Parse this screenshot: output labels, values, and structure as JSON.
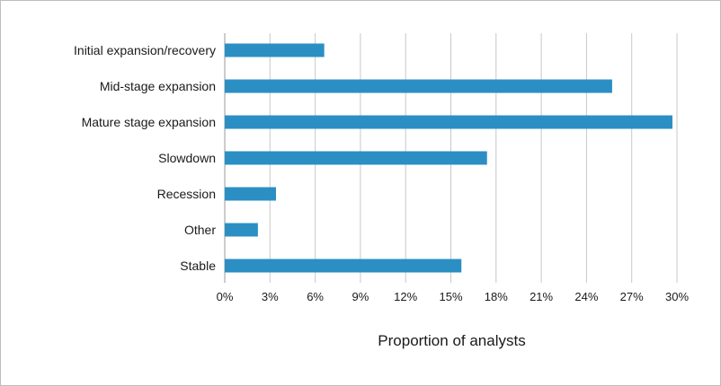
{
  "chart_data": {
    "type": "bar",
    "orientation": "horizontal",
    "categories": [
      "Initial expansion/recovery",
      "Mid-stage expansion",
      "Mature stage expansion",
      "Slowdown",
      "Recession",
      "Other",
      "Stable"
    ],
    "values": [
      6.6,
      25.7,
      29.7,
      17.4,
      3.4,
      2.2,
      15.7
    ],
    "xlabel": "Proportion of analysts",
    "ylabel": "",
    "title": "",
    "xlim": [
      0,
      30
    ],
    "x_ticks": [
      0,
      3,
      6,
      9,
      12,
      15,
      18,
      21,
      24,
      27,
      30
    ],
    "x_tick_labels": [
      "0%",
      "3%",
      "6%",
      "9%",
      "12%",
      "15%",
      "18%",
      "21%",
      "24%",
      "27%",
      "30%"
    ],
    "grid": "vertical",
    "bar_color": "#2b8fc4",
    "grid_color": "#c8c8c8"
  }
}
